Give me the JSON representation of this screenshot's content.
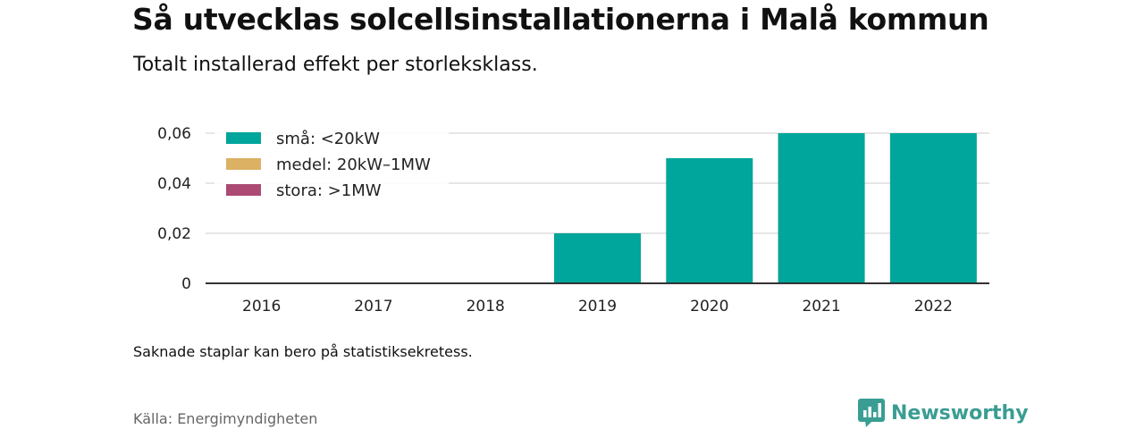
{
  "title": "Så utvecklas solcellsinstallationerna i Malå kommun",
  "subtitle": "Totalt installerad effekt per storleksklass.",
  "note": "Saknade staplar kan bero på statistiksekretess.",
  "source": "Källa: Energimyndigheten",
  "brand": {
    "name": "Newsworthy",
    "icon": "newsworthy-logo-icon",
    "color": "#3a9d93"
  },
  "chart_data": {
    "type": "bar",
    "stacked": true,
    "categories": [
      "2016",
      "2017",
      "2018",
      "2019",
      "2020",
      "2021",
      "2022"
    ],
    "series": [
      {
        "name": "små: <20kW",
        "color": "#00a59b",
        "values": [
          0,
          0,
          0,
          0.02,
          0.05,
          0.06,
          0.06
        ]
      },
      {
        "name": "medel: 20kW–1MW",
        "color": "#dcb164",
        "values": [
          0,
          0,
          0,
          0,
          0,
          0,
          0
        ]
      },
      {
        "name": "stora: >1MW",
        "color": "#ac4a73",
        "values": [
          0,
          0,
          0,
          0,
          0,
          0,
          0
        ]
      }
    ],
    "yticks": [
      0,
      0.02,
      0.04,
      0.06
    ],
    "ytick_labels": [
      "0",
      "0,02",
      "0,04",
      "0,06"
    ],
    "ylim": [
      0,
      0.06
    ],
    "grid": true,
    "legend_position": "top-left"
  }
}
